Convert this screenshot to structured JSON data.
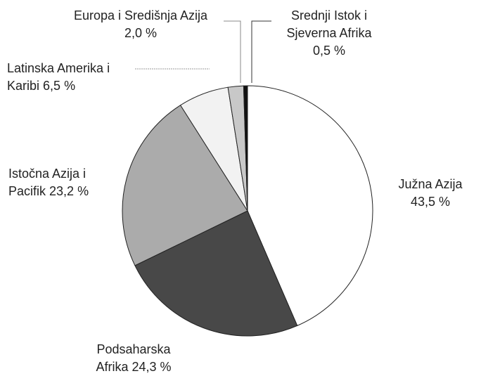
{
  "chart_data": {
    "type": "pie",
    "categories": [
      "Južna Azija",
      "Podsaharska Afrika",
      "Istočna Azija i Pacifik",
      "Latinska Amerika i Karibi",
      "Europa i Središnja Azija",
      "Srednji Istok i Sjeverna Afrika"
    ],
    "values": [
      43.5,
      24.3,
      23.2,
      6.5,
      2.0,
      0.5
    ],
    "value_labels": [
      "43,5 %",
      "24,3 %",
      "23,2 %",
      "6,5 %",
      "2,0 %",
      "0,5 %"
    ],
    "colors": [
      "#ffffff",
      "#484848",
      "#ababab",
      "#f2f2f2",
      "#c8c8c8",
      "#111111"
    ]
  }
}
